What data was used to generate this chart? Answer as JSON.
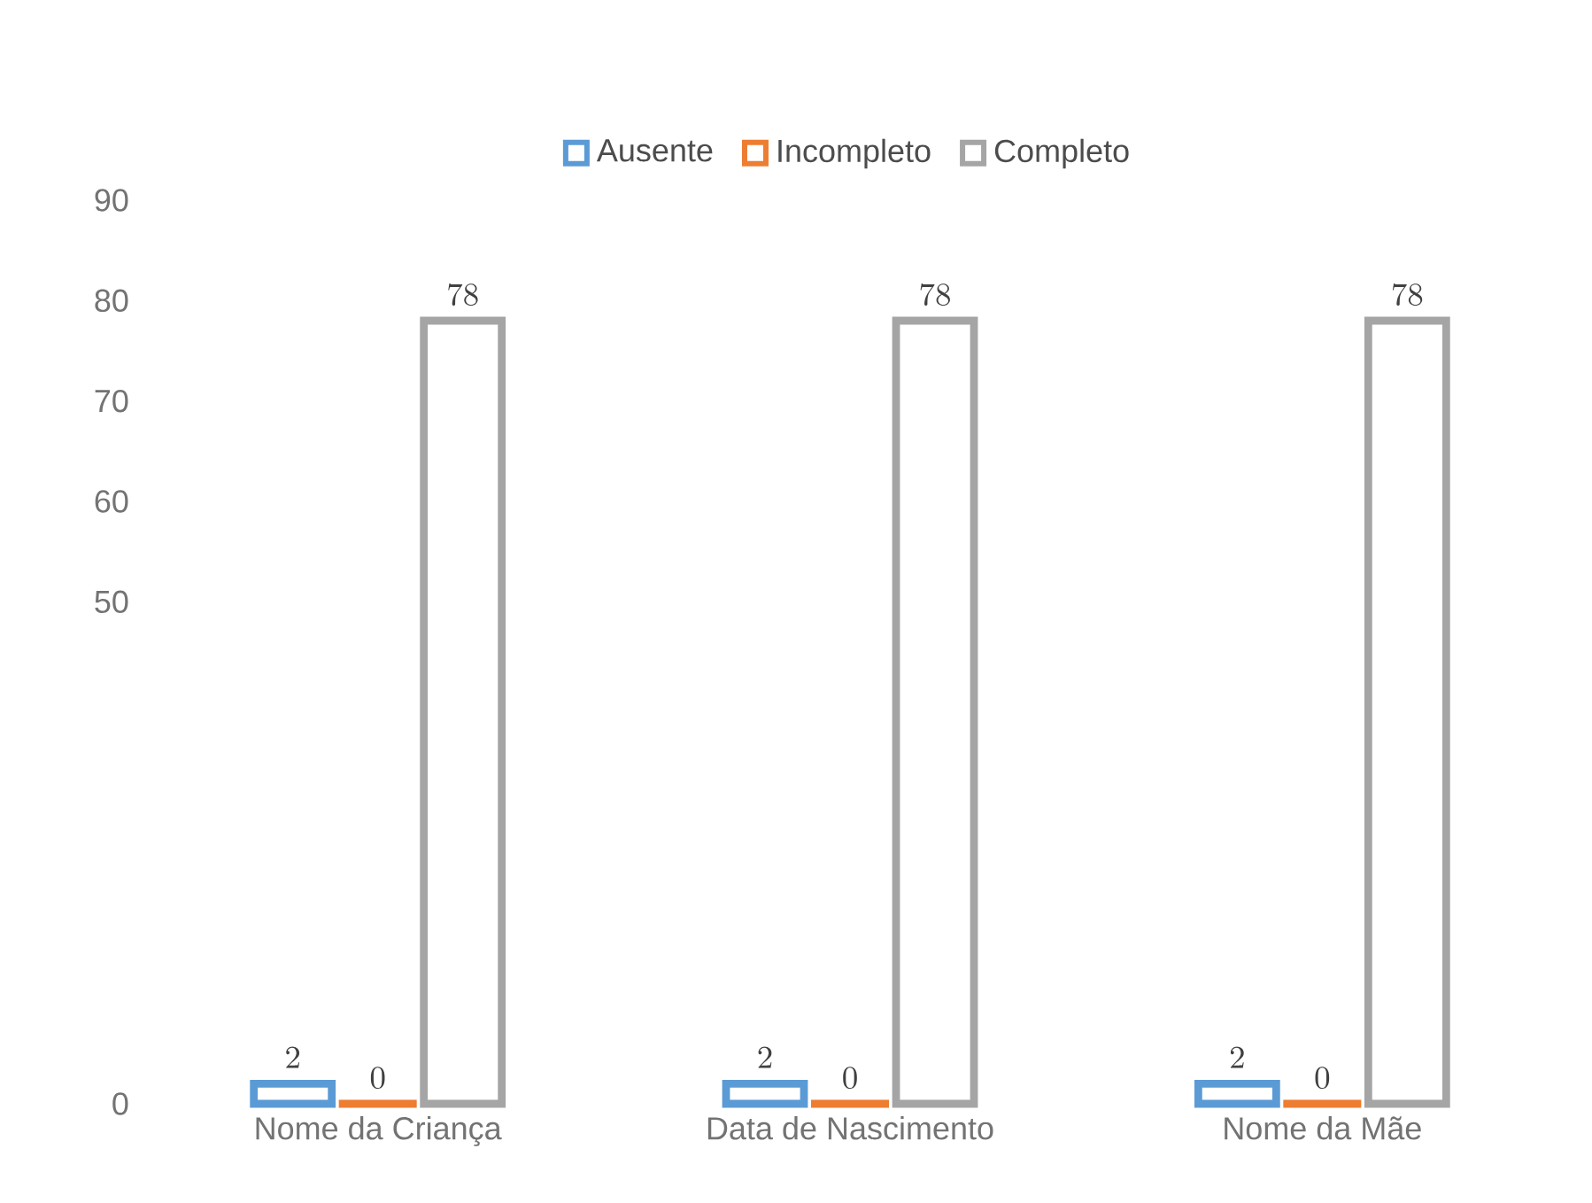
{
  "chart_data": {
    "type": "bar",
    "categories": [
      "Nome da Criança",
      "Data de Nascimento",
      "Nome da Mãe"
    ],
    "series": [
      {
        "name": "Ausente",
        "color": "#5b9bd5",
        "values": [
          2,
          2,
          2
        ]
      },
      {
        "name": "Incompleto",
        "color": "#ed7d31",
        "values": [
          0,
          0,
          0
        ]
      },
      {
        "name": "Completo",
        "color": "#a5a5a5",
        "values": [
          78,
          78,
          78
        ]
      }
    ],
    "ylim": [
      0,
      90
    ],
    "yticks": [
      0,
      50,
      60,
      70,
      80,
      90
    ],
    "data_labels": true,
    "legend": "top",
    "grid": false
  }
}
